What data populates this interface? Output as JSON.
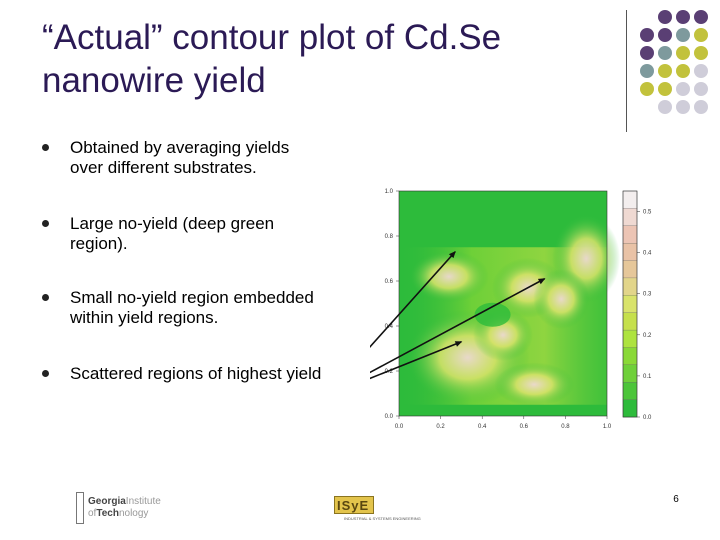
{
  "slide": {
    "title_lines": [
      "“Actual” contour plot of Cd.Se",
      "nanowire yield"
    ],
    "bullets": [
      {
        "lines": [
          "Obtained by averaging yields",
          "over different substrates."
        ]
      },
      {
        "lines": [
          "Large no-yield (deep green",
          "region)."
        ]
      },
      {
        "lines": [
          "Small no-yield region embedded",
          "within yield regions."
        ]
      },
      {
        "lines": [
          "Scattered regions of highest yield"
        ]
      }
    ],
    "page_number": "6"
  },
  "chart_data": {
    "type": "heatmap",
    "title": "",
    "xlabel": "",
    "ylabel": "",
    "x_ticks": [
      "0.0",
      "0.2",
      "0.4",
      "0.6",
      "0.8",
      "1.0"
    ],
    "y_ticks": [
      "1.0",
      "0.8",
      "0.6",
      "0.4",
      "0.2",
      "0.0"
    ],
    "xlim": [
      0,
      1
    ],
    "ylim": [
      0,
      1
    ],
    "colorbar": {
      "ticks": [
        "0.5",
        "0.4",
        "0.3",
        "0.2",
        "0.1",
        "0.0"
      ],
      "range": [
        0,
        0.55
      ],
      "levels": 13,
      "colors_high_to_low": [
        "#f3eeee",
        "#efd9d2",
        "#ecc4b4",
        "#e9c2a6",
        "#e6c79a",
        "#e2d58a",
        "#d9e36b",
        "#c6e04c",
        "#aee33f",
        "#8ad937",
        "#6fd03a",
        "#4cc53a",
        "#2dbb3b"
      ]
    },
    "field_colors": {
      "low": "#2dbb3b",
      "mid": "#d9e36b",
      "high": "#efd9d2"
    },
    "peaks": [
      {
        "x": 0.33,
        "y": 0.26,
        "value": 0.5
      },
      {
        "x": 0.24,
        "y": 0.62,
        "value": 0.38
      },
      {
        "x": 0.62,
        "y": 0.57,
        "value": 0.32
      },
      {
        "x": 0.9,
        "y": 0.7,
        "value": 0.42
      },
      {
        "x": 0.78,
        "y": 0.52,
        "value": 0.35
      },
      {
        "x": 0.65,
        "y": 0.14,
        "value": 0.24
      },
      {
        "x": 0.5,
        "y": 0.36,
        "value": 0.3
      }
    ],
    "no_yield_region": {
      "x": 0.45,
      "y": 0.45,
      "value": 0.0
    },
    "annotation_arrow_targets": [
      {
        "x": 0.27,
        "y": 0.73
      },
      {
        "x": 0.7,
        "y": 0.61
      },
      {
        "x": 0.3,
        "y": 0.33
      }
    ]
  },
  "decor": {
    "dot_colors": [
      "#5a3f74",
      "#7e9a9d",
      "#c2c23c",
      "#cfcdd9"
    ]
  },
  "logos": {
    "gt_line1_bold": "Georgia",
    "gt_line1_light": "Institute",
    "gt_line2_light": "of",
    "gt_line2_bold": "Tech",
    "gt_line2_rest": "nology",
    "ise_mark": "ISyE",
    "ise_sub": "INDUSTRIAL & SYSTEMS ENGINEERING"
  }
}
